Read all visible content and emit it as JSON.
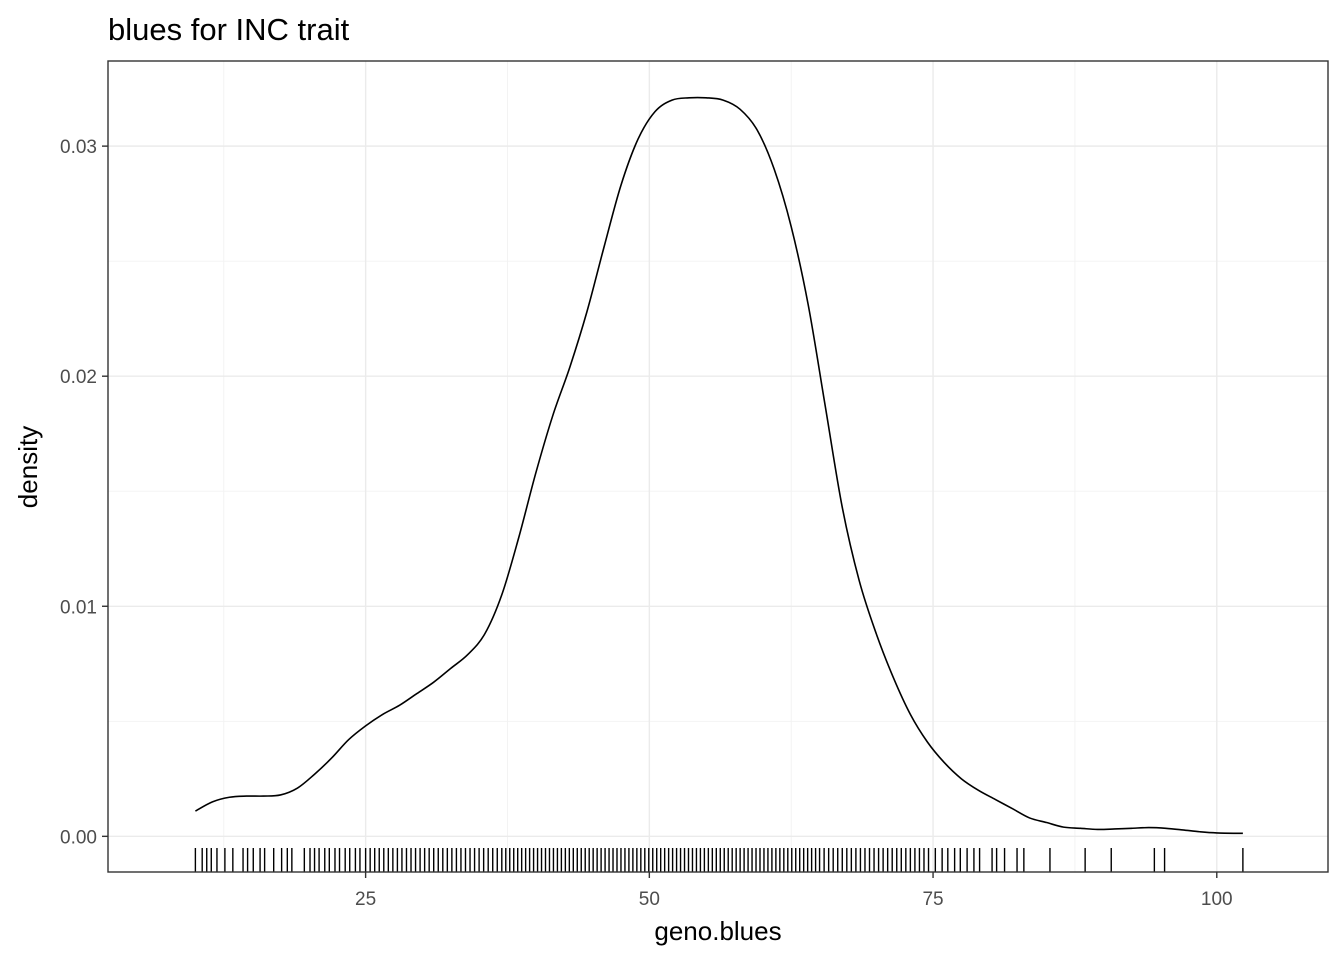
{
  "chart_data": {
    "type": "line",
    "title": "blues for INC trait",
    "xlabel": "geno.blues",
    "ylabel": "density",
    "xlim": [
      2.3,
      109.8
    ],
    "ylim": [
      -0.00155,
      0.0337
    ],
    "x_ticks": [
      25,
      50,
      75,
      100
    ],
    "x_tick_labels": [
      "25",
      "50",
      "75",
      "100"
    ],
    "y_ticks": [
      0,
      0.01,
      0.02,
      0.03
    ],
    "y_tick_labels": [
      "0.00",
      "0.01",
      "0.02",
      "0.03"
    ],
    "grid": true,
    "legend": "none",
    "series": [
      {
        "x": [
          10.0,
          11.5,
          13.0,
          14.5,
          16.0,
          17.5,
          19.0,
          20.5,
          22.0,
          23.5,
          25.0,
          26.5,
          28.0,
          29.5,
          31.0,
          32.5,
          34.0,
          35.5,
          37.0,
          38.5,
          40.0,
          41.5,
          43.0,
          44.5,
          46.0,
          47.5,
          49.0,
          50.5,
          52.0,
          53.5,
          55.0,
          56.5,
          58.0,
          59.5,
          61.0,
          62.5,
          64.0,
          65.5,
          67.0,
          68.5,
          70.0,
          71.5,
          73.0,
          74.5,
          76.0,
          77.5,
          79.0,
          80.5,
          82.0,
          83.5,
          85.0,
          86.5,
          88.0,
          89.5,
          91.0,
          92.5,
          94.0,
          95.5,
          97.0,
          98.5,
          100.0,
          102.3
        ],
        "y": [
          0.0011,
          0.0015,
          0.0017,
          0.00175,
          0.00175,
          0.0018,
          0.0021,
          0.0027,
          0.0034,
          0.0042,
          0.0048,
          0.0053,
          0.0057,
          0.0062,
          0.0067,
          0.0073,
          0.0079,
          0.0088,
          0.0105,
          0.013,
          0.0158,
          0.0183,
          0.0204,
          0.0228,
          0.0256,
          0.0283,
          0.0303,
          0.0315,
          0.032,
          0.0321,
          0.0321,
          0.032,
          0.0316,
          0.0307,
          0.029,
          0.0265,
          0.0231,
          0.0187,
          0.0143,
          0.0111,
          0.0088,
          0.0069,
          0.0053,
          0.0041,
          0.0032,
          0.0025,
          0.002,
          0.0016,
          0.0012,
          0.0008,
          0.0006,
          0.0004,
          0.00035,
          0.0003,
          0.00032,
          0.00035,
          0.00038,
          0.00035,
          0.00028,
          0.0002,
          0.00015,
          0.00013
        ]
      }
    ],
    "rug_x": [
      10.0,
      10.6,
      11.0,
      11.4,
      11.9,
      12.6,
      13.3,
      14.2,
      14.6,
      15.1,
      15.7,
      16.1,
      16.9,
      17.6,
      18.1,
      18.5,
      19.6,
      20.1,
      20.5,
      20.9,
      21.4,
      21.8,
      22.3,
      22.7,
      23.2,
      23.6,
      24.1,
      24.5,
      25.0,
      25.4,
      25.8,
      26.2,
      26.6,
      27.0,
      27.4,
      27.8,
      28.2,
      28.6,
      29.0,
      29.4,
      29.8,
      30.2,
      30.6,
      31.0,
      31.4,
      31.8,
      32.2,
      32.6,
      33.0,
      33.4,
      33.8,
      34.2,
      34.6,
      35.0,
      35.4,
      35.8,
      36.2,
      36.6,
      37.0,
      37.35,
      37.7,
      38.05,
      38.4,
      38.75,
      39.1,
      39.45,
      39.8,
      40.15,
      40.5,
      40.85,
      41.2,
      41.55,
      41.9,
      42.25,
      42.6,
      42.95,
      43.3,
      43.65,
      44.0,
      44.35,
      44.7,
      45.05,
      45.4,
      45.75,
      46.1,
      46.45,
      46.8,
      47.15,
      47.5,
      47.85,
      48.2,
      48.55,
      48.9,
      49.25,
      49.6,
      49.95,
      50.3,
      50.65,
      51.0,
      51.35,
      51.7,
      52.05,
      52.4,
      52.75,
      53.1,
      53.45,
      53.8,
      54.15,
      54.5,
      54.85,
      55.2,
      55.55,
      55.9,
      56.25,
      56.6,
      56.95,
      57.3,
      57.65,
      58.0,
      58.35,
      58.7,
      59.05,
      59.4,
      59.75,
      60.1,
      60.45,
      60.8,
      61.15,
      61.5,
      61.85,
      62.2,
      62.55,
      62.9,
      63.25,
      63.6,
      63.95,
      64.3,
      64.65,
      65.0,
      65.4,
      65.8,
      66.2,
      66.6,
      67.0,
      67.4,
      67.8,
      68.2,
      68.6,
      69.0,
      69.4,
      69.8,
      70.2,
      70.6,
      71.0,
      71.4,
      71.8,
      72.2,
      72.6,
      73.0,
      73.4,
      73.8,
      74.2,
      74.6,
      75.2,
      75.8,
      76.3,
      76.9,
      77.4,
      78.0,
      78.6,
      79.1,
      80.2,
      80.6,
      81.3,
      82.4,
      83.0,
      85.3,
      88.4,
      90.7,
      94.5,
      95.4,
      102.3
    ]
  }
}
